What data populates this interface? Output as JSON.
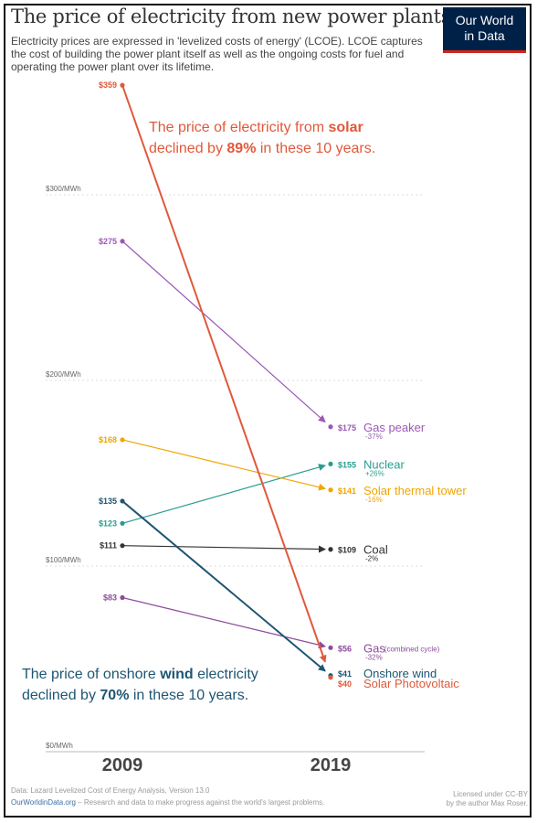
{
  "header": {
    "title": "The price of electricity from new power plants",
    "subtitle": "Electricity prices are expressed in 'levelized costs of energy' (LCOE). LCOE captures the cost of building the power plant itself as well as the ongoing costs for fuel and operating the power plant over its lifetime.",
    "logo_line1": "Our World",
    "logo_line2": "in Data"
  },
  "annotations": {
    "solar_a": "The price of electricity from ",
    "solar_b": "solar",
    "solar_c": "declined by ",
    "solar_d": "89%",
    "solar_e": " in these 10 years.",
    "wind_a": "The price of onshore ",
    "wind_b": "wind",
    "wind_c": " electricity",
    "wind_d": "declined by ",
    "wind_e": "70%",
    "wind_f": " in these 10 years."
  },
  "footer": {
    "source": "Data: Lazard Levelized Cost of Energy Analysis, Version 13.0",
    "site": "OurWorldinData.org",
    "tagline": " – Research and data to make progress against the world's largest problems.",
    "license_1": "Licensed under CC-BY",
    "license_2": "by the author Max Roser."
  },
  "chart_data": {
    "type": "line",
    "x": [
      "2009",
      "2019"
    ],
    "ylim": [
      0,
      360
    ],
    "y_ticks": [
      {
        "value": 0,
        "label": "$0/MWh"
      },
      {
        "value": 100,
        "label": "$100/MWh"
      },
      {
        "value": 200,
        "label": "$200/MWh"
      },
      {
        "value": 300,
        "label": "$300/MWh"
      }
    ],
    "grid": true,
    "series": [
      {
        "name": "Gas peaker",
        "color": "#9b59b6",
        "values": [
          275,
          175
        ],
        "start_label": "$275",
        "end_label": "$175",
        "change": "-37%"
      },
      {
        "name": "Nuclear",
        "color": "#2a9d8f",
        "values": [
          123,
          155
        ],
        "start_label": "$123",
        "end_label": "$155",
        "change": "+26%"
      },
      {
        "name": "Solar thermal tower",
        "color": "#f0a500",
        "values": [
          168,
          141
        ],
        "start_label": "$168",
        "end_label": "$141",
        "change": "-16%"
      },
      {
        "name": "Coal",
        "color": "#333333",
        "values": [
          111,
          109
        ],
        "start_label": "$111",
        "end_label": "$109",
        "change": "-2%"
      },
      {
        "name": "Gas",
        "name_note": "(combined cycle)",
        "color": "#8e4a9c",
        "values": [
          83,
          56
        ],
        "start_label": "$83",
        "end_label": "$56",
        "change": "-32%"
      },
      {
        "name": "Onshore wind",
        "color": "#1d5673",
        "values": [
          135,
          41
        ],
        "start_label": "$135",
        "end_label": "$41",
        "change": ""
      },
      {
        "name": "Solar Photovoltaic",
        "color": "#e0593b",
        "values": [
          359,
          40
        ],
        "start_label": "$359",
        "end_label": "$40",
        "change": ""
      }
    ]
  }
}
